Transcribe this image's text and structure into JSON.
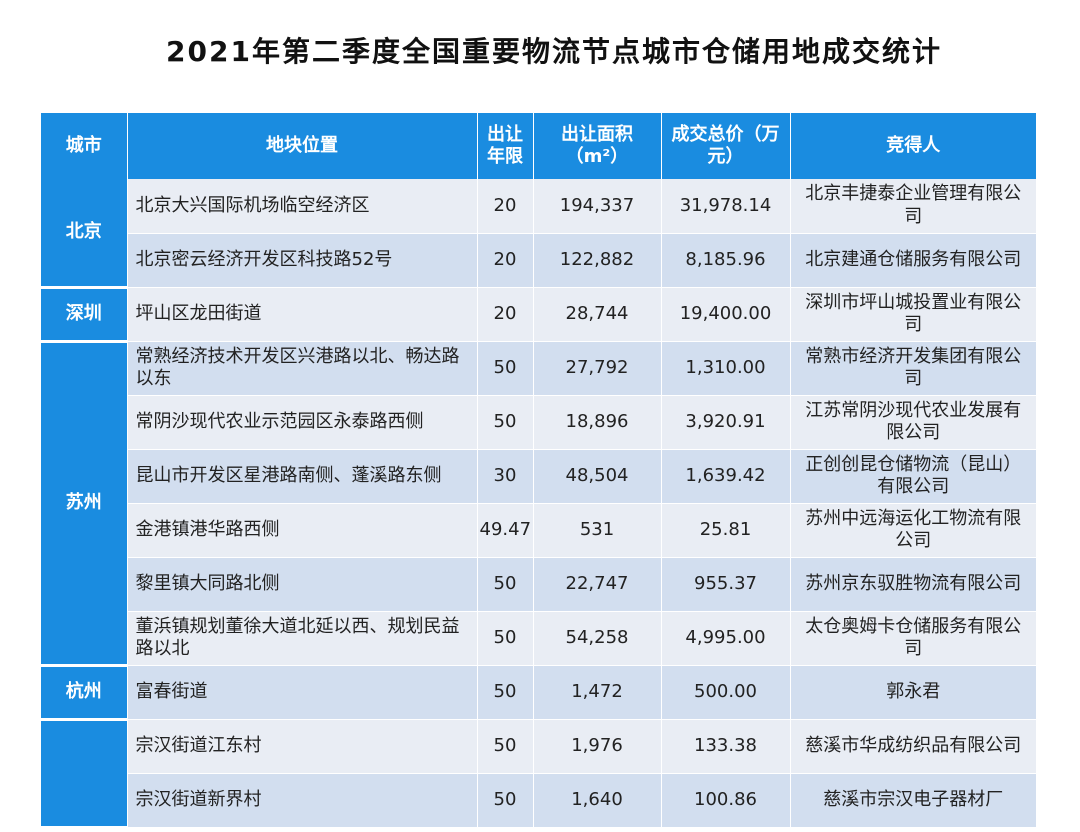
{
  "title": "2021年第二季度全国重要物流节点城市仓储用地成交统计",
  "headers": {
    "city": "城市",
    "location": "地块位置",
    "years": "出让年限",
    "area": "出让面积（m²）",
    "price": "成交总价（万元）",
    "buyer": "竞得人"
  },
  "groups": [
    {
      "city": "北京",
      "rows": [
        {
          "location": "北京大兴国际机场临空经济区",
          "years": "20",
          "area": "194,337",
          "price": "31,978.14",
          "buyer": "北京丰捷泰企业管理有限公司"
        },
        {
          "location": "北京密云经济开发区科技路52号",
          "years": "20",
          "area": "122,882",
          "price": "8,185.96",
          "buyer": "北京建通仓储服务有限公司"
        }
      ]
    },
    {
      "city": "深圳",
      "rows": [
        {
          "location": "坪山区龙田街道",
          "years": "20",
          "area": "28,744",
          "price": "19,400.00",
          "buyer": "深圳市坪山城投置业有限公司"
        }
      ]
    },
    {
      "city": "苏州",
      "rows": [
        {
          "location": "常熟经济技术开发区兴港路以北、畅达路以东",
          "years": "50",
          "area": "27,792",
          "price": "1,310.00",
          "buyer": "常熟市经济开发集团有限公司"
        },
        {
          "location": "常阴沙现代农业示范园区永泰路西侧",
          "years": "50",
          "area": "18,896",
          "price": "3,920.91",
          "buyer": "江苏常阴沙现代农业发展有限公司"
        },
        {
          "location": "昆山市开发区星港路南侧、蓬溪路东侧",
          "years": "30",
          "area": "48,504",
          "price": "1,639.42",
          "buyer": "正创创昆仓储物流（昆山）有限公司"
        },
        {
          "location": "金港镇港华路西侧",
          "years": "49.47",
          "area": "531",
          "price": "25.81",
          "buyer": "苏州中远海运化工物流有限公司"
        },
        {
          "location": "黎里镇大同路北侧",
          "years": "50",
          "area": "22,747",
          "price": "955.37",
          "buyer": "苏州京东驭胜物流有限公司"
        },
        {
          "location": "董浜镇规划董徐大道北延以西、规划民益路以北",
          "years": "50",
          "area": "54,258",
          "price": "4,995.00",
          "buyer": "太仓奥姆卡仓储服务有限公司"
        }
      ]
    },
    {
      "city": "杭州",
      "rows": [
        {
          "location": "富春街道",
          "years": "50",
          "area": "1,472",
          "price": "500.00",
          "buyer": "郭永君"
        }
      ]
    },
    {
      "city": "",
      "rows": [
        {
          "location": "宗汉街道江东村",
          "years": "50",
          "area": "1,976",
          "price": "133.38",
          "buyer": "慈溪市华成纺织品有限公司"
        },
        {
          "location": "宗汉街道新界村",
          "years": "50",
          "area": "1,640",
          "price": "100.86",
          "buyer": "慈溪市宗汉电子器材厂"
        }
      ]
    }
  ]
}
